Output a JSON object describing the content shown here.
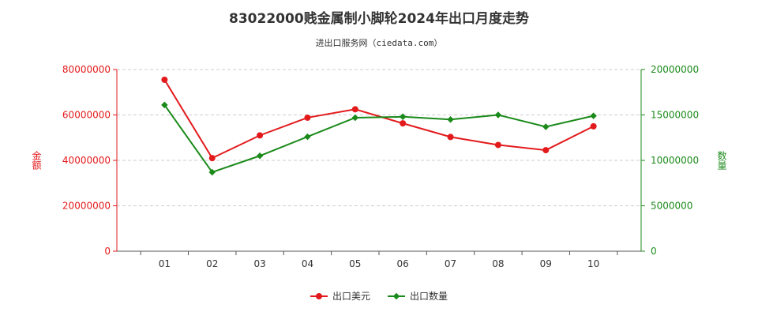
{
  "title": "83022000贱金属制小脚轮2024年出口月度走势",
  "subtitle": "进出口服务网（ciedata.com）",
  "chart_data": {
    "type": "line",
    "categories": [
      "01",
      "02",
      "03",
      "04",
      "05",
      "06",
      "07",
      "08",
      "09",
      "10"
    ],
    "series": [
      {
        "name": "出口美元",
        "axis": "left",
        "color": "#e31a1c",
        "values": [
          75500000,
          41000000,
          51000000,
          58800000,
          62500000,
          56300000,
          50300000,
          46800000,
          44500000,
          55000000
        ]
      },
      {
        "name": "出口数量",
        "axis": "right",
        "color": "#1a8a1a",
        "values": [
          16100000,
          8700000,
          10500000,
          12600000,
          14700000,
          14800000,
          14500000,
          15000000,
          13700000,
          14900000
        ]
      }
    ],
    "ylabel_left": "金额",
    "ylabel_right": "数量",
    "ylim_left": [
      0,
      80000000
    ],
    "ylim_right": [
      0,
      20000000
    ],
    "yticks_left": [
      "0",
      "20000000",
      "40000000",
      "60000000",
      "80000000"
    ],
    "yticks_right": [
      "0",
      "5000000",
      "10000000",
      "15000000",
      "20000000"
    ],
    "grid": "horizontal dashed",
    "legend": "bottom-center"
  }
}
